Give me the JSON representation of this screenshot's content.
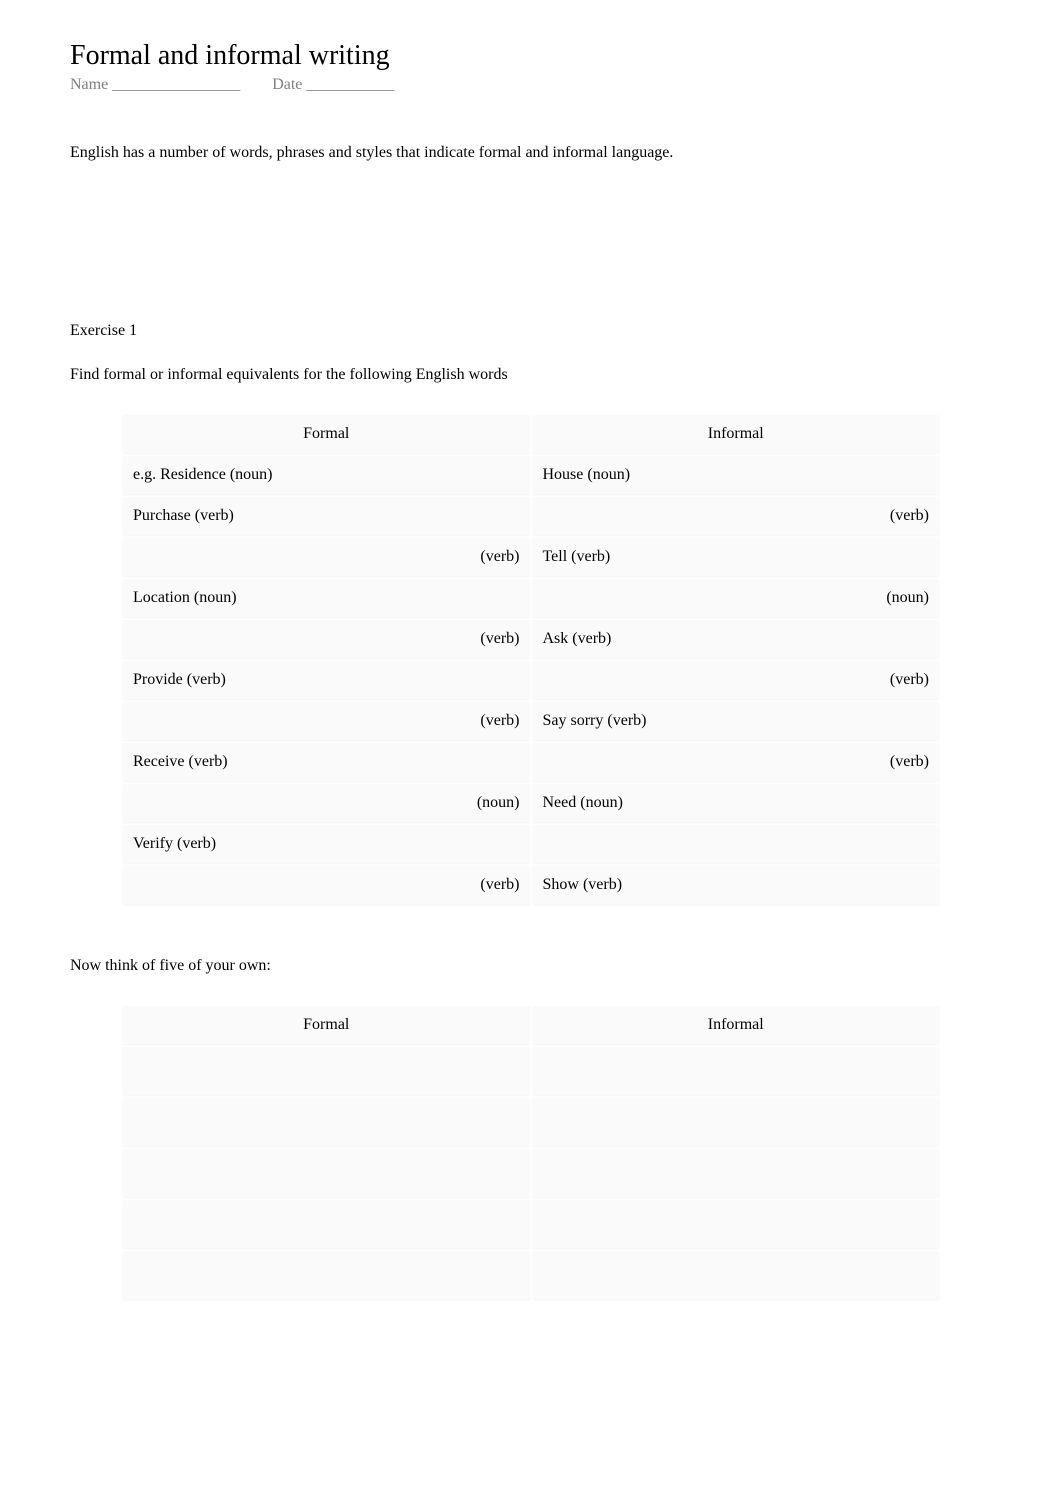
{
  "title": "Formal and informal writing",
  "meta": {
    "name_label": "Name ________________",
    "date_label": "Date ___________"
  },
  "intro": "English has a number of words, phrases and styles that indicate formal and informal language.",
  "exercise_heading": "Exercise 1",
  "exercise_instruction": "Find formal or informal equivalents for the following English words",
  "table1": {
    "header_formal": "Formal",
    "header_informal": "Informal",
    "rows": [
      {
        "formal": "e.g. Residence (noun)",
        "formal_align": "left",
        "informal": "House (noun)",
        "informal_align": "left"
      },
      {
        "formal": "Purchase (verb)",
        "formal_align": "left",
        "informal": "(verb)",
        "informal_align": "right"
      },
      {
        "formal": "(verb)",
        "formal_align": "right",
        "informal": "Tell (verb)",
        "informal_align": "left"
      },
      {
        "formal": "Location (noun)",
        "formal_align": "left",
        "informal": "(noun)",
        "informal_align": "right"
      },
      {
        "formal": "(verb)",
        "formal_align": "right",
        "informal": "Ask (verb)",
        "informal_align": "left"
      },
      {
        "formal": "Provide (verb)",
        "formal_align": "left",
        "informal": "(verb)",
        "informal_align": "right"
      },
      {
        "formal": "(verb)",
        "formal_align": "right",
        "informal": "Say sorry (verb)",
        "informal_align": "left"
      },
      {
        "formal": "Receive (verb)",
        "formal_align": "left",
        "informal": "(verb)",
        "informal_align": "right"
      },
      {
        "formal": "(noun)",
        "formal_align": "right",
        "informal": "Need (noun)",
        "informal_align": "left"
      },
      {
        "formal": "Verify (verb)",
        "formal_align": "left",
        "informal": "",
        "informal_align": "left"
      },
      {
        "formal": "(verb)",
        "formal_align": "right",
        "informal": "Show (verb)",
        "informal_align": "left"
      }
    ]
  },
  "own_heading": "Now think of five of your own:",
  "table2": {
    "header_formal": "Formal",
    "header_informal": "Informal",
    "row_count": 5
  },
  "colors": {
    "background": "#ffffff",
    "text": "#000000",
    "meta_text": "#808080",
    "cell_background": "#fafafb"
  }
}
